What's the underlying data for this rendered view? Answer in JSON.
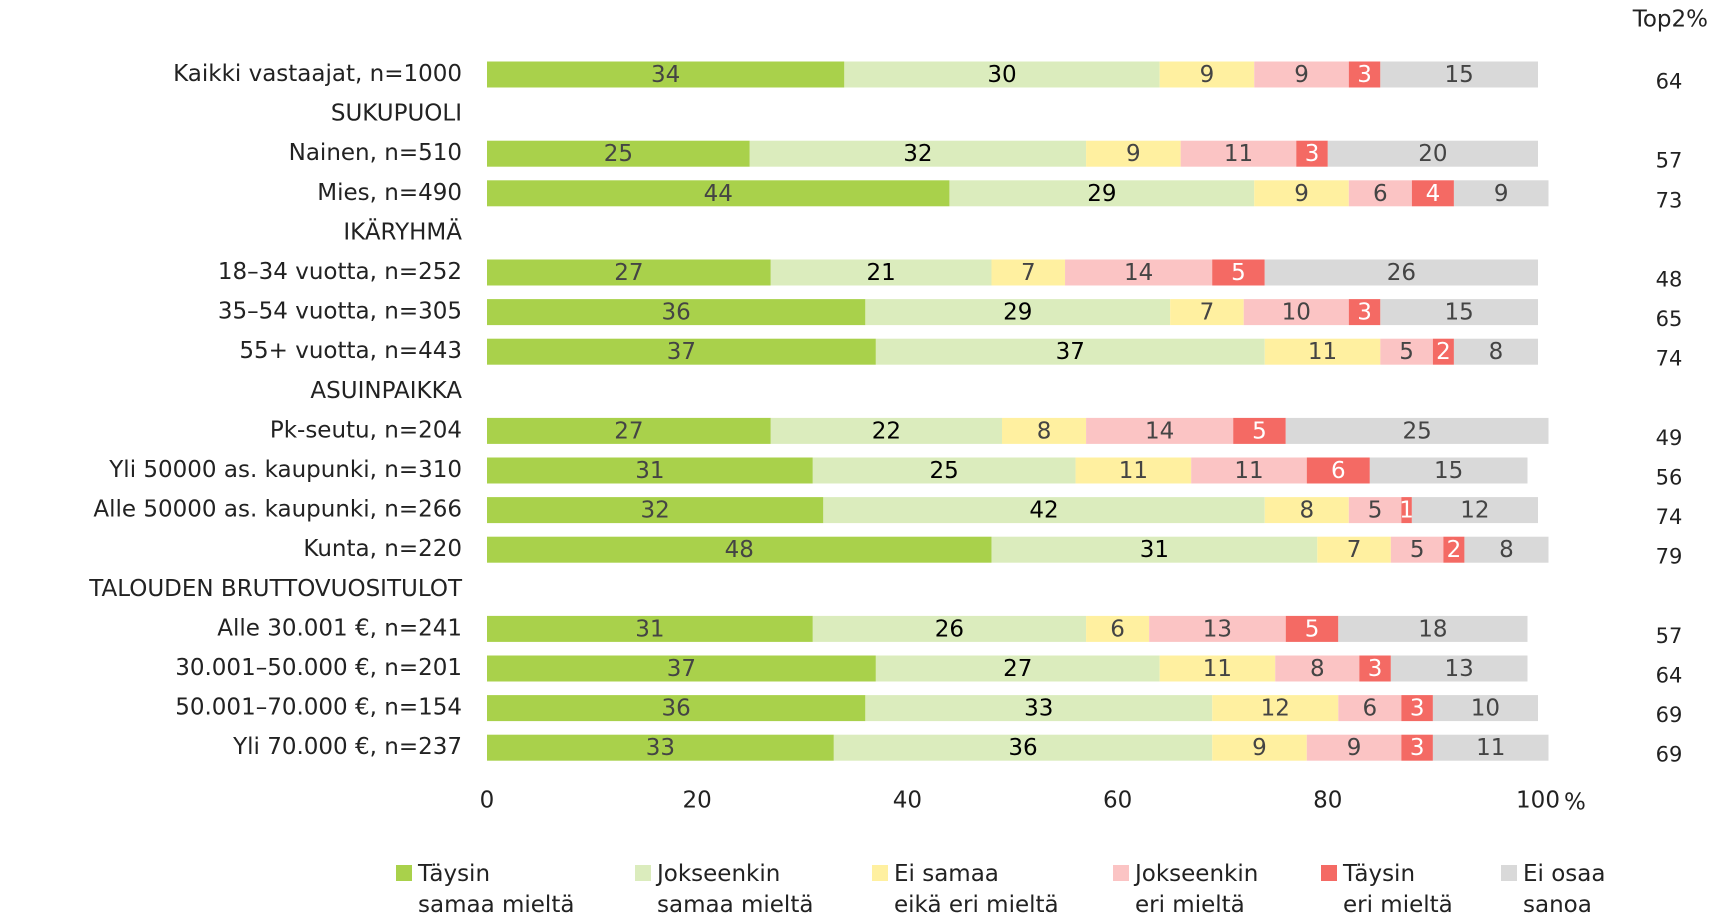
{
  "chart_data": {
    "type": "stacked_barh",
    "categories": [
      "Kaikki vastaajat, n=1000",
      "SUKUPUOLI",
      "Nainen, n=510",
      "Mies, n=490",
      "IKÄRYHMÄ",
      "18–34 vuotta, n=252",
      "35–54 vuotta, n=305",
      "55+ vuotta, n=443",
      "ASUINPAIKKA",
      "Pk-seutu, n=204",
      "Yli 50000 as. kaupunki, n=310",
      "Alle 50000 as. kaupunki, n=266",
      "Kunta, n=220",
      "TALOUDEN BRUTTOVUOSITULOT",
      "Alle 30.001 €, n=241",
      "30.001–50.000 €, n=201",
      "50.001–70.000 €, n=154",
      "Yli 70.000 €, n=237"
    ],
    "series": [
      {
        "name": "Täysin\nsamaa mieltä",
        "color": "#a9d14b",
        "values": [
          34,
          null,
          25,
          44,
          null,
          27,
          36,
          37,
          null,
          27,
          31,
          32,
          48,
          null,
          31,
          37,
          36,
          33
        ]
      },
      {
        "name": "Jokseenkin\nsamaa mieltä",
        "color": "#dbecbd",
        "values": [
          30,
          null,
          32,
          29,
          null,
          21,
          29,
          37,
          null,
          22,
          25,
          42,
          31,
          null,
          26,
          27,
          33,
          36
        ]
      },
      {
        "name": "Ei samaa\neikä eri mieltä",
        "color": "#fff0a0",
        "values": [
          9,
          null,
          9,
          9,
          null,
          7,
          7,
          11,
          null,
          8,
          11,
          8,
          7,
          null,
          6,
          11,
          12,
          9
        ]
      },
      {
        "name": "Jokseenkin\neri mieltä",
        "color": "#fbc4c4",
        "values": [
          9,
          null,
          11,
          6,
          null,
          14,
          10,
          5,
          null,
          14,
          11,
          5,
          5,
          null,
          13,
          8,
          6,
          9
        ]
      },
      {
        "name": "Täysin\neri mieltä",
        "color": "#f46a64",
        "values": [
          3,
          null,
          3,
          4,
          null,
          5,
          3,
          2,
          null,
          5,
          6,
          1,
          2,
          null,
          5,
          3,
          3,
          3
        ]
      },
      {
        "name": "Ei osaa\nsanoa",
        "color": "#d9d9d9",
        "values": [
          15,
          null,
          20,
          9,
          null,
          26,
          15,
          8,
          null,
          25,
          15,
          12,
          8,
          null,
          18,
          13,
          10,
          11
        ]
      }
    ],
    "top2_label": "Top2%",
    "top2": [
      64,
      null,
      57,
      73,
      null,
      48,
      65,
      74,
      null,
      49,
      56,
      74,
      79,
      null,
      57,
      64,
      69,
      69
    ],
    "xlim": [
      0,
      100
    ],
    "xticks": [
      0,
      20,
      40,
      60,
      80,
      100
    ],
    "xlabel": "%"
  }
}
